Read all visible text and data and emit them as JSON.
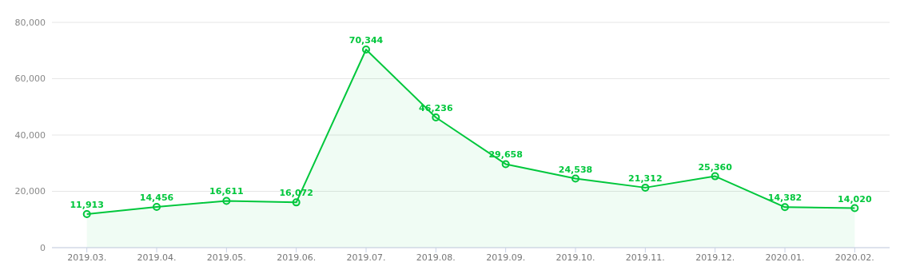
{
  "chart_data": {
    "type": "area",
    "categories": [
      "2019.03.",
      "2019.04.",
      "2019.05.",
      "2019.06.",
      "2019.07.",
      "2019.08.",
      "2019.09.",
      "2019.10.",
      "2019.11.",
      "2019.12.",
      "2020.01.",
      "2020.02."
    ],
    "series": [
      {
        "color": "#00c73c",
        "values": [
          11913,
          14456,
          16611,
          16072,
          70344,
          46236,
          29658,
          24538,
          21312,
          25360,
          14382,
          14020
        ],
        "value_labels": [
          "11,913",
          "14,456",
          "16,611",
          "16,072",
          "70,344",
          "46,236",
          "29,658",
          "24,538",
          "21,312",
          "25,360",
          "14,382",
          "14,020"
        ]
      }
    ],
    "ylim": [
      0,
      80000
    ],
    "yticks": [
      {
        "value": 0,
        "label": "0"
      },
      {
        "value": 20000,
        "label": "20,000"
      },
      {
        "value": 40000,
        "label": "40,000"
      },
      {
        "value": 60000,
        "label": "60,000"
      },
      {
        "value": 80000,
        "label": "80,000"
      }
    ],
    "grid": "y",
    "marker": "circle",
    "line_style": "solid"
  }
}
